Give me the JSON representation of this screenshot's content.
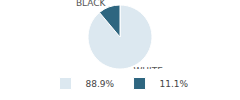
{
  "chart_data": {
    "type": "pie",
    "categories": [
      "WHITE",
      "BLACK"
    ],
    "values": [
      88.9,
      11.1
    ],
    "value_labels": [
      "88.9%",
      "11.1%"
    ],
    "colors": [
      "#dce8f0",
      "#2e6680"
    ],
    "legend": "bottom"
  }
}
